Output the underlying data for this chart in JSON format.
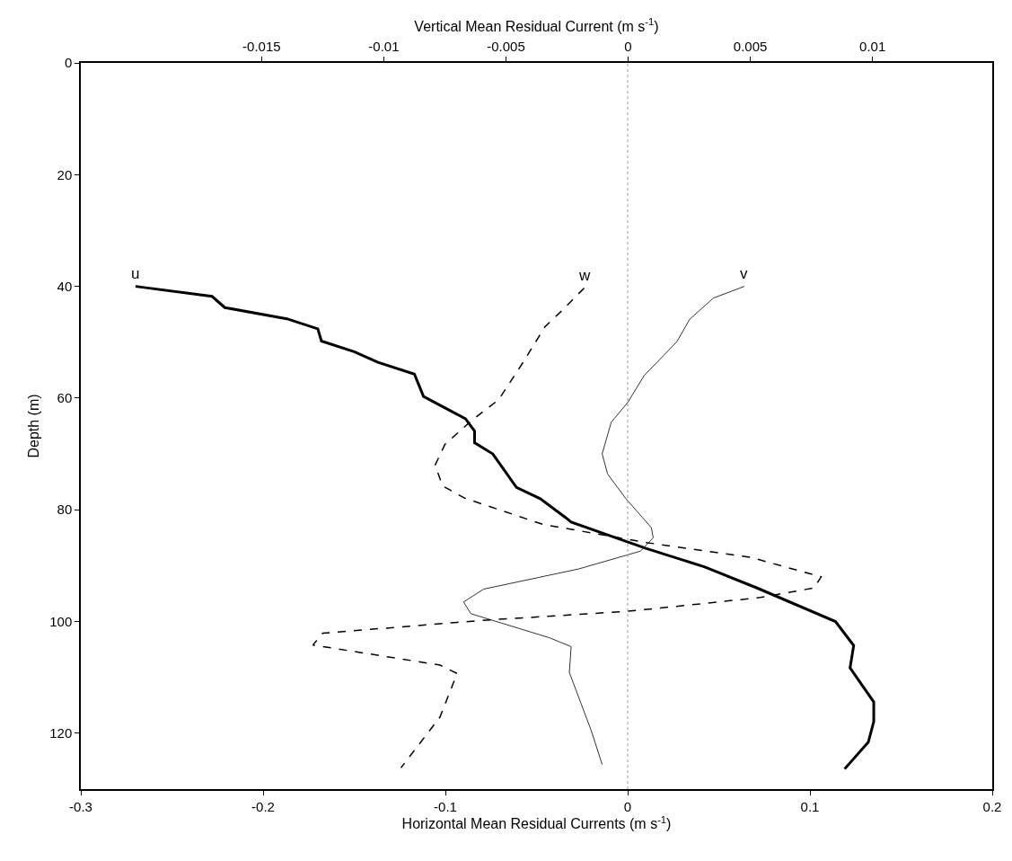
{
  "chart_data": {
    "type": "line",
    "xlabel": "Horizontal Mean Residual Currents (m s$^{-1}$)",
    "x2label": "Vertical Mean Residual Current (m s$^{-1}$)",
    "ylabel": "Depth (m)",
    "xlim": [
      -0.3,
      0.2
    ],
    "xticks": [
      -0.3,
      -0.2,
      -0.1,
      0,
      0.1,
      0.2
    ],
    "x2lim": [
      -0.0224,
      0.0149
    ],
    "x2ticks": [
      -0.015,
      -0.01,
      -0.005,
      0,
      0.005,
      0.01
    ],
    "ylim": [
      130,
      0
    ],
    "yticks": [
      0,
      20,
      40,
      60,
      80,
      100,
      120
    ],
    "legend": false,
    "marker": "none",
    "ref_lines": [
      {
        "axis": "x",
        "value": 0,
        "color": "#999999",
        "line_style": "dotted"
      }
    ],
    "series": [
      {
        "name": "u",
        "color": "#000000",
        "line_style": "solid",
        "x": [
          -0.27,
          -0.228,
          -0.221,
          -0.187,
          -0.17,
          -0.168,
          -0.15,
          -0.137,
          -0.117,
          -0.112,
          -0.089,
          -0.084,
          -0.084,
          -0.074,
          -0.061,
          -0.048,
          -0.034,
          -0.031,
          0.01,
          0.042,
          0.071,
          0.114,
          0.124,
          0.122,
          0.135,
          0.135,
          0.132,
          0.119
        ],
        "values": [
          40,
          41.8,
          43.8,
          45.8,
          47.6,
          49.8,
          51.7,
          53.6,
          55.7,
          59.7,
          63.7,
          65.9,
          68,
          70,
          76,
          78,
          81.4,
          82.2,
          86.9,
          90.2,
          94,
          100,
          104.3,
          108.3,
          114.4,
          117.9,
          121.6,
          126.4
        ]
      },
      {
        "name": "w",
        "color": "#000000",
        "line_style": "dashed",
        "axis": "x2",
        "x": [
          -0.0018,
          -0.0027,
          -0.0034,
          -0.0043,
          -0.0053,
          -0.0064,
          -0.0075,
          -0.0079,
          -0.0076,
          -0.0067,
          -0.0035,
          0.0008,
          0.005,
          0.0079,
          0.0076,
          0.0054,
          0.0024,
          -0.0001,
          -0.006,
          -0.0125,
          -0.0129,
          -0.0077,
          -0.007,
          -0.0077,
          -0.0093
        ],
        "values": [
          40.3,
          44.3,
          47.2,
          53.6,
          60.3,
          64,
          68.3,
          72,
          75.7,
          77.9,
          82.6,
          85.9,
          88.5,
          92,
          94,
          95.7,
          97.1,
          98.2,
          99.8,
          102.1,
          104.2,
          107.8,
          109.3,
          117.1,
          126.2
        ]
      },
      {
        "name": "v",
        "color": "#333333",
        "line_style": "solid",
        "x": [
          0.064,
          0.047,
          0.034,
          0.027,
          0.009,
          0.0,
          -0.009,
          -0.014,
          -0.011,
          -0.001,
          0.013,
          0.014,
          0.007,
          -0.027,
          -0.079,
          -0.09,
          -0.086,
          -0.043,
          -0.031,
          -0.032,
          -0.025,
          -0.02,
          -0.014
        ],
        "values": [
          40,
          42.1,
          45.9,
          49.9,
          56,
          60.8,
          64.3,
          70,
          73.6,
          78,
          83.2,
          85,
          87.4,
          90.6,
          94.2,
          96.5,
          98.6,
          102.9,
          104.5,
          109.1,
          115.2,
          119.5,
          125.6
        ]
      }
    ]
  }
}
